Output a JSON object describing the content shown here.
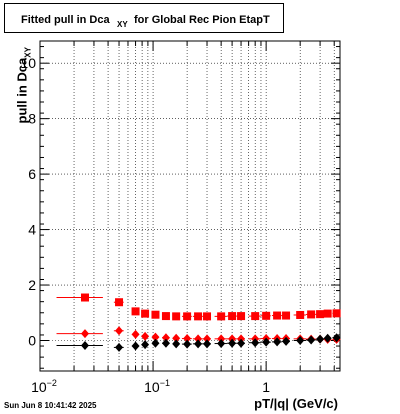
{
  "chart_data": {
    "type": "scatter",
    "title": {
      "main": "Fitted pull in Dca",
      "sub": "XY",
      "rest": "for Global Rec Pion EtapT"
    },
    "ylabel": {
      "main": "pull in Dca",
      "sub": "XY"
    },
    "xlabel": "pT/|q| (GeV/c)",
    "x_scale": "log",
    "xlim": [
      0.01,
      4.5
    ],
    "ylim": [
      -1.1,
      10.8
    ],
    "grid": true,
    "x_major_ticks": [
      {
        "value": 0.01,
        "base": "10",
        "exp": "−2"
      },
      {
        "value": 0.1,
        "base": "10",
        "exp": "−1"
      },
      {
        "value": 1,
        "base": "1",
        "exp": ""
      }
    ],
    "y_ticks": [
      0,
      2,
      4,
      6,
      8,
      10
    ],
    "series": [
      {
        "color": "#ff0000",
        "marker": "square",
        "x": [
          0.025,
          0.05,
          0.07,
          0.085,
          0.105,
          0.13,
          0.16,
          0.2,
          0.25,
          0.3,
          0.4,
          0.5,
          0.6,
          0.8,
          1.0,
          1.25,
          1.5,
          2.0,
          2.5,
          3.0,
          3.5,
          4.2
        ],
        "y": [
          1.55,
          1.38,
          1.05,
          0.97,
          0.93,
          0.88,
          0.87,
          0.87,
          0.87,
          0.87,
          0.87,
          0.88,
          0.88,
          0.88,
          0.89,
          0.9,
          0.9,
          0.92,
          0.94,
          0.95,
          0.97,
          0.98
        ],
        "xerr_low": [
          0.011,
          0.005,
          0.005,
          0.005,
          0.005,
          0.01,
          0.01,
          0.02,
          0.025,
          0.025,
          0.05,
          0.05,
          0.05,
          0.1,
          0.1,
          0.125,
          0.125,
          0.25,
          0.25,
          0.25,
          0.25,
          0.35
        ],
        "xerr_high": [
          0.011,
          0.005,
          0.005,
          0.005,
          0.005,
          0.01,
          0.01,
          0.02,
          0.025,
          0.025,
          0.05,
          0.05,
          0.05,
          0.1,
          0.1,
          0.125,
          0.125,
          0.25,
          0.25,
          0.25,
          0.25,
          0.35
        ]
      },
      {
        "color": "#ff0000",
        "marker": "diamond",
        "x": [
          0.025,
          0.05,
          0.07,
          0.085,
          0.105,
          0.13,
          0.16,
          0.2,
          0.25,
          0.3,
          0.4,
          0.5,
          0.6,
          0.8,
          1.0,
          1.25,
          1.5,
          2.0,
          2.5,
          3.0,
          3.5,
          4.2
        ],
        "y": [
          0.25,
          0.35,
          0.22,
          0.15,
          0.12,
          0.1,
          0.08,
          0.07,
          0.06,
          0.06,
          0.06,
          0.06,
          0.06,
          0.06,
          0.07,
          0.07,
          0.07,
          0.06,
          0.05,
          0.05,
          0.04,
          0.04
        ],
        "xerr_low": [
          0.011,
          0.005,
          0.005,
          0.005,
          0.005,
          0.01,
          0.01,
          0.02,
          0.025,
          0.025,
          0.05,
          0.05,
          0.05,
          0.1,
          0.1,
          0.125,
          0.125,
          0.25,
          0.25,
          0.25,
          0.25,
          0.35
        ],
        "xerr_high": [
          0.011,
          0.005,
          0.005,
          0.005,
          0.005,
          0.01,
          0.01,
          0.02,
          0.025,
          0.025,
          0.05,
          0.05,
          0.05,
          0.1,
          0.1,
          0.125,
          0.125,
          0.25,
          0.25,
          0.25,
          0.25,
          0.35
        ]
      },
      {
        "color": "#000000",
        "marker": "diamond",
        "x": [
          0.025,
          0.05,
          0.07,
          0.085,
          0.105,
          0.13,
          0.16,
          0.2,
          0.25,
          0.3,
          0.4,
          0.5,
          0.6,
          0.8,
          1.0,
          1.25,
          1.5,
          2.0,
          2.5,
          3.0,
          3.5,
          4.2
        ],
        "y": [
          -0.18,
          -0.25,
          -0.2,
          -0.15,
          -0.1,
          -0.1,
          -0.12,
          -0.13,
          -0.12,
          -0.12,
          -0.11,
          -0.1,
          -0.1,
          -0.08,
          -0.06,
          -0.05,
          -0.03,
          0.0,
          0.02,
          0.05,
          0.08,
          0.1
        ],
        "xerr_low": [
          0.011,
          0.005,
          0.005,
          0.005,
          0.005,
          0.01,
          0.01,
          0.02,
          0.025,
          0.025,
          0.05,
          0.05,
          0.05,
          0.1,
          0.1,
          0.125,
          0.125,
          0.25,
          0.25,
          0.25,
          0.25,
          0.35
        ],
        "xerr_high": [
          0.011,
          0.005,
          0.005,
          0.005,
          0.005,
          0.01,
          0.01,
          0.02,
          0.025,
          0.025,
          0.05,
          0.05,
          0.05,
          0.1,
          0.1,
          0.125,
          0.125,
          0.25,
          0.25,
          0.25,
          0.25,
          0.35
        ]
      }
    ]
  },
  "footer": {
    "datestamp": "Sun Jun  8 10:41:42 2025"
  }
}
